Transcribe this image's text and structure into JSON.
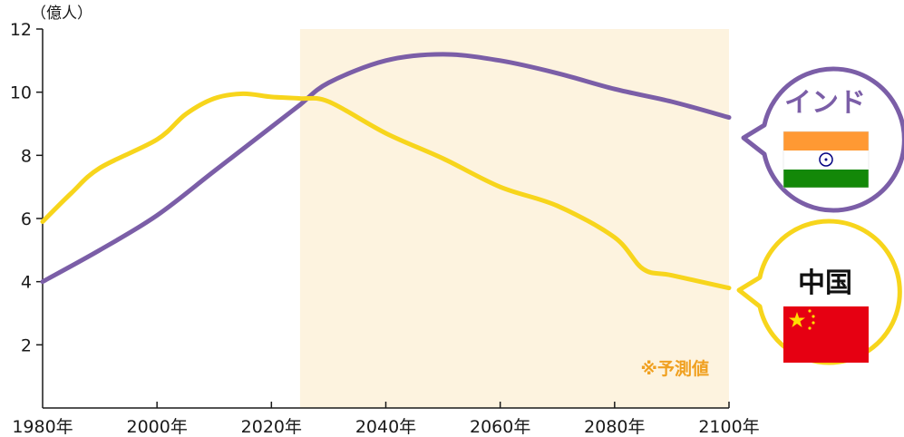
{
  "chart_data": {
    "type": "line",
    "unit_label": "（億人）",
    "forecast_note": "※予測値",
    "forecast_region": [
      2025,
      2100
    ],
    "xlim": [
      1980,
      2100
    ],
    "ylim": [
      0,
      12
    ],
    "x_ticks": [
      {
        "value": 1980,
        "label": "1980年"
      },
      {
        "value": 2000,
        "label": "2000年"
      },
      {
        "value": 2020,
        "label": "2020年"
      },
      {
        "value": 2040,
        "label": "2040年"
      },
      {
        "value": 2060,
        "label": "2060年"
      },
      {
        "value": 2080,
        "label": "2080年"
      },
      {
        "value": 2100,
        "label": "2100年"
      }
    ],
    "y_ticks": [
      {
        "value": 2,
        "label": "2"
      },
      {
        "value": 4,
        "label": "4"
      },
      {
        "value": 6,
        "label": "6"
      },
      {
        "value": 8,
        "label": "8"
      },
      {
        "value": 10,
        "label": "10"
      },
      {
        "value": 12,
        "label": "12"
      }
    ],
    "grid": false,
    "series": [
      {
        "name": "インド",
        "color": "#7b5ea7",
        "flag": "india-flag",
        "points": [
          [
            1980,
            4.0
          ],
          [
            1990,
            5.0
          ],
          [
            2000,
            6.1
          ],
          [
            2010,
            7.5
          ],
          [
            2020,
            8.9
          ],
          [
            2025,
            9.6
          ],
          [
            2030,
            10.3
          ],
          [
            2040,
            11.0
          ],
          [
            2050,
            11.2
          ],
          [
            2060,
            11.0
          ],
          [
            2070,
            10.6
          ],
          [
            2080,
            10.1
          ],
          [
            2090,
            9.7
          ],
          [
            2100,
            9.2
          ]
        ]
      },
      {
        "name": "中国",
        "color": "#f7d51c",
        "flag": "china-flag",
        "points": [
          [
            1980,
            5.9
          ],
          [
            1985,
            6.8
          ],
          [
            1990,
            7.6
          ],
          [
            2000,
            8.5
          ],
          [
            2005,
            9.3
          ],
          [
            2010,
            9.8
          ],
          [
            2015,
            9.95
          ],
          [
            2020,
            9.85
          ],
          [
            2025,
            9.8
          ],
          [
            2030,
            9.7
          ],
          [
            2040,
            8.7
          ],
          [
            2050,
            7.9
          ],
          [
            2060,
            7.0
          ],
          [
            2070,
            6.4
          ],
          [
            2080,
            5.4
          ],
          [
            2085,
            4.4
          ],
          [
            2090,
            4.2
          ],
          [
            2100,
            3.8
          ]
        ]
      }
    ]
  }
}
